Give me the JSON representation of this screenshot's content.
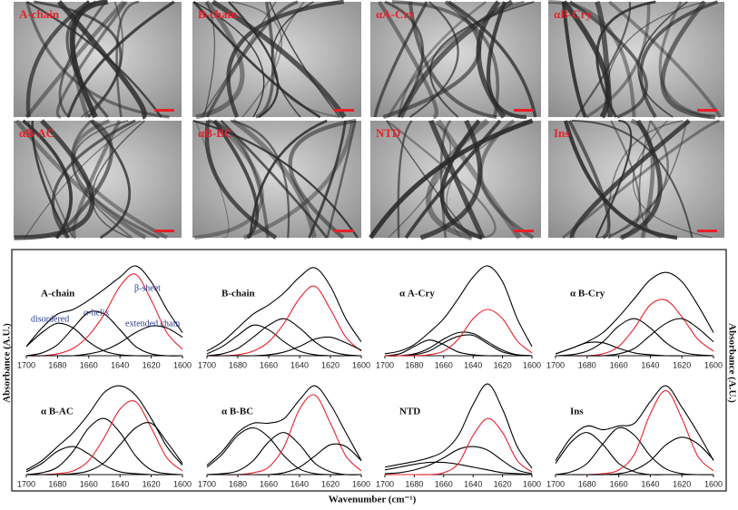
{
  "figure": {
    "xlabel": "Wavenumber (cm⁻¹)",
    "ylabel": "Absorbance (A.U.)"
  },
  "images": [
    {
      "label": "A-chain"
    },
    {
      "label": "B-chain"
    },
    {
      "label": "αA-Cry"
    },
    {
      "label": "αB-Cry"
    },
    {
      "label": "αB-AC"
    },
    {
      "label": "αB-BC"
    },
    {
      "label": "NTD"
    },
    {
      "label": "Ins"
    }
  ],
  "chart_data": [
    {
      "type": "line",
      "title": "A-chain",
      "annotations": [
        "disordered",
        "α-helix",
        "β-sheet",
        "extended chain"
      ],
      "x": [
        1700,
        1690,
        1680,
        1670,
        1660,
        1650,
        1640,
        1630,
        1620,
        1610,
        1600
      ],
      "xlim": [
        1700,
        1600
      ],
      "xticks": [
        1700,
        1680,
        1660,
        1640,
        1620,
        1600
      ],
      "ylim": [
        0,
        1
      ],
      "series": [
        {
          "color": "#000000",
          "values": [
            0.1,
            0.3,
            0.45,
            0.5,
            0.6,
            0.72,
            0.85,
            0.97,
            0.8,
            0.5,
            0.25
          ]
        },
        {
          "color": "#000000",
          "values": [
            0.1,
            0.25,
            0.35,
            0.3,
            0.15,
            0.05,
            0.01,
            0,
            0,
            0,
            0
          ]
        },
        {
          "color": "#000000",
          "values": [
            0,
            0.03,
            0.12,
            0.3,
            0.47,
            0.45,
            0.28,
            0.1,
            0.02,
            0,
            0
          ]
        },
        {
          "color": "#e8202a",
          "values": [
            0,
            0,
            0.02,
            0.08,
            0.22,
            0.45,
            0.75,
            0.88,
            0.6,
            0.25,
            0.07
          ]
        },
        {
          "color": "#000000",
          "values": [
            0,
            0,
            0,
            0,
            0.02,
            0.06,
            0.14,
            0.25,
            0.32,
            0.3,
            0.2
          ]
        }
      ]
    },
    {
      "type": "line",
      "title": "B-chain",
      "x": [
        1700,
        1690,
        1680,
        1670,
        1660,
        1650,
        1640,
        1630,
        1620,
        1610,
        1600
      ],
      "xlim": [
        1700,
        1600
      ],
      "xticks": [
        1700,
        1680,
        1660,
        1640,
        1620,
        1600
      ],
      "ylim": [
        0,
        1
      ],
      "series": [
        {
          "color": "#000000",
          "values": [
            0.05,
            0.15,
            0.3,
            0.45,
            0.55,
            0.68,
            0.85,
            0.95,
            0.75,
            0.4,
            0.15
          ]
        },
        {
          "color": "#000000",
          "values": [
            0.02,
            0.1,
            0.22,
            0.33,
            0.28,
            0.15,
            0.05,
            0.01,
            0,
            0,
            0
          ]
        },
        {
          "color": "#000000",
          "values": [
            0,
            0.02,
            0.08,
            0.2,
            0.33,
            0.4,
            0.3,
            0.15,
            0.05,
            0.01,
            0
          ]
        },
        {
          "color": "#e8202a",
          "values": [
            0,
            0,
            0.01,
            0.05,
            0.15,
            0.35,
            0.62,
            0.75,
            0.5,
            0.2,
            0.05
          ]
        },
        {
          "color": "#000000",
          "values": [
            0,
            0,
            0,
            0,
            0.01,
            0.04,
            0.1,
            0.18,
            0.2,
            0.14,
            0.06
          ]
        }
      ]
    },
    {
      "type": "line",
      "title": "α A-Cry",
      "x": [
        1700,
        1690,
        1680,
        1670,
        1660,
        1650,
        1640,
        1630,
        1620,
        1610,
        1600
      ],
      "xlim": [
        1700,
        1600
      ],
      "xticks": [
        1700,
        1680,
        1660,
        1640,
        1620,
        1600
      ],
      "ylim": [
        0,
        1
      ],
      "series": [
        {
          "color": "#000000",
          "values": [
            0.02,
            0.05,
            0.12,
            0.25,
            0.4,
            0.62,
            0.85,
            0.97,
            0.8,
            0.4,
            0.1
          ]
        },
        {
          "color": "#000000",
          "values": [
            0,
            0.02,
            0.1,
            0.17,
            0.12,
            0.04,
            0.01,
            0,
            0,
            0,
            0
          ]
        },
        {
          "color": "#000000",
          "values": [
            0,
            0,
            0.02,
            0.08,
            0.18,
            0.25,
            0.24,
            0.15,
            0.06,
            0.01,
            0
          ]
        },
        {
          "color": "#000000",
          "values": [
            0,
            0,
            0.01,
            0.05,
            0.14,
            0.21,
            0.22,
            0.13,
            0.04,
            0.01,
            0
          ]
        },
        {
          "color": "#e8202a",
          "values": [
            0,
            0,
            0,
            0.01,
            0.05,
            0.18,
            0.4,
            0.5,
            0.4,
            0.16,
            0.03
          ]
        }
      ]
    },
    {
      "type": "line",
      "title": "α B-Cry",
      "x": [
        1700,
        1690,
        1680,
        1670,
        1660,
        1650,
        1640,
        1630,
        1620,
        1610,
        1600
      ],
      "xlim": [
        1700,
        1600
      ],
      "xticks": [
        1700,
        1680,
        1660,
        1640,
        1620,
        1600
      ],
      "ylim": [
        0,
        1
      ],
      "series": [
        {
          "color": "#000000",
          "values": [
            0.02,
            0.08,
            0.15,
            0.25,
            0.42,
            0.62,
            0.82,
            0.9,
            0.8,
            0.55,
            0.25
          ]
        },
        {
          "color": "#000000",
          "values": [
            0.02,
            0.08,
            0.14,
            0.14,
            0.08,
            0.03,
            0.01,
            0,
            0,
            0,
            0
          ]
        },
        {
          "color": "#000000",
          "values": [
            0,
            0.01,
            0.05,
            0.15,
            0.32,
            0.4,
            0.3,
            0.14,
            0.04,
            0.01,
            0
          ]
        },
        {
          "color": "#e8202a",
          "values": [
            0,
            0,
            0,
            0.02,
            0.1,
            0.3,
            0.55,
            0.6,
            0.42,
            0.18,
            0.05
          ]
        },
        {
          "color": "#000000",
          "values": [
            0,
            0,
            0,
            0,
            0.02,
            0.08,
            0.22,
            0.35,
            0.4,
            0.3,
            0.15
          ]
        }
      ]
    },
    {
      "type": "line",
      "title": "α B-AC",
      "x": [
        1700,
        1690,
        1680,
        1670,
        1660,
        1650,
        1640,
        1630,
        1620,
        1610,
        1600
      ],
      "xlim": [
        1700,
        1600
      ],
      "xticks": [
        1700,
        1680,
        1660,
        1640,
        1620,
        1600
      ],
      "ylim": [
        0,
        1
      ],
      "series": [
        {
          "color": "#000000",
          "values": [
            0.05,
            0.15,
            0.3,
            0.45,
            0.65,
            0.88,
            0.95,
            0.85,
            0.6,
            0.3,
            0.1
          ]
        },
        {
          "color": "#000000",
          "values": [
            0.03,
            0.12,
            0.25,
            0.3,
            0.22,
            0.1,
            0.03,
            0.01,
            0,
            0,
            0
          ]
        },
        {
          "color": "#000000",
          "values": [
            0,
            0.02,
            0.08,
            0.25,
            0.5,
            0.6,
            0.45,
            0.2,
            0.05,
            0.01,
            0
          ]
        },
        {
          "color": "#e8202a",
          "values": [
            0,
            0,
            0.01,
            0.04,
            0.15,
            0.4,
            0.7,
            0.78,
            0.5,
            0.18,
            0.04
          ]
        },
        {
          "color": "#000000",
          "values": [
            0,
            0,
            0,
            0.01,
            0.04,
            0.13,
            0.32,
            0.5,
            0.55,
            0.35,
            0.12
          ]
        }
      ]
    },
    {
      "type": "line",
      "title": "α B-BC",
      "x": [
        1700,
        1690,
        1680,
        1670,
        1660,
        1650,
        1640,
        1630,
        1620,
        1610,
        1600
      ],
      "xlim": [
        1700,
        1600
      ],
      "xticks": [
        1700,
        1680,
        1660,
        1640,
        1620,
        1600
      ],
      "ylim": [
        0,
        1
      ],
      "series": [
        {
          "color": "#000000",
          "values": [
            0.1,
            0.25,
            0.45,
            0.55,
            0.55,
            0.6,
            0.8,
            0.95,
            0.75,
            0.45,
            0.15
          ]
        },
        {
          "color": "#000000",
          "values": [
            0.08,
            0.22,
            0.42,
            0.5,
            0.4,
            0.2,
            0.06,
            0.01,
            0,
            0,
            0
          ]
        },
        {
          "color": "#000000",
          "values": [
            0,
            0.01,
            0.04,
            0.15,
            0.35,
            0.45,
            0.32,
            0.12,
            0.03,
            0,
            0
          ]
        },
        {
          "color": "#e8202a",
          "values": [
            0,
            0,
            0,
            0.02,
            0.08,
            0.3,
            0.7,
            0.85,
            0.55,
            0.2,
            0.04
          ]
        },
        {
          "color": "#000000",
          "values": [
            0,
            0,
            0,
            0,
            0,
            0.02,
            0.08,
            0.2,
            0.32,
            0.3,
            0.15
          ]
        }
      ]
    },
    {
      "type": "line",
      "title": "NTD",
      "x": [
        1700,
        1690,
        1680,
        1670,
        1660,
        1650,
        1640,
        1630,
        1620,
        1610,
        1600
      ],
      "xlim": [
        1700,
        1600
      ],
      "xticks": [
        1700,
        1680,
        1660,
        1640,
        1620,
        1600
      ],
      "ylim": [
        0,
        1
      ],
      "series": [
        {
          "color": "#000000",
          "values": [
            0.08,
            0.11,
            0.14,
            0.18,
            0.25,
            0.42,
            0.75,
            0.97,
            0.7,
            0.3,
            0.07
          ]
        },
        {
          "color": "#000000",
          "values": [
            0.05,
            0.08,
            0.11,
            0.13,
            0.13,
            0.11,
            0.08,
            0.05,
            0.02,
            0.01,
            0
          ]
        },
        {
          "color": "#000000",
          "values": [
            0.01,
            0.02,
            0.05,
            0.1,
            0.18,
            0.27,
            0.3,
            0.26,
            0.15,
            0.05,
            0.01
          ]
        },
        {
          "color": "#e8202a",
          "values": [
            0,
            0,
            0,
            0,
            0.02,
            0.12,
            0.42,
            0.6,
            0.45,
            0.15,
            0.03
          ]
        }
      ]
    },
    {
      "type": "line",
      "title": "Ins",
      "x": [
        1700,
        1690,
        1680,
        1670,
        1660,
        1650,
        1640,
        1630,
        1620,
        1610,
        1600
      ],
      "xlim": [
        1700,
        1600
      ],
      "xticks": [
        1700,
        1680,
        1660,
        1640,
        1620,
        1600
      ],
      "ylim": [
        0,
        1
      ],
      "series": [
        {
          "color": "#000000",
          "values": [
            0.15,
            0.4,
            0.52,
            0.48,
            0.52,
            0.55,
            0.78,
            0.95,
            0.72,
            0.45,
            0.15
          ]
        },
        {
          "color": "#000000",
          "values": [
            0.12,
            0.35,
            0.45,
            0.32,
            0.12,
            0.03,
            0,
            0,
            0,
            0,
            0
          ]
        },
        {
          "color": "#000000",
          "values": [
            0,
            0.03,
            0.12,
            0.33,
            0.5,
            0.42,
            0.2,
            0.06,
            0.01,
            0,
            0
          ]
        },
        {
          "color": "#e8202a",
          "values": [
            0,
            0,
            0,
            0.01,
            0.05,
            0.22,
            0.65,
            0.9,
            0.6,
            0.2,
            0.04
          ]
        },
        {
          "color": "#000000",
          "values": [
            0,
            0,
            0,
            0,
            0.01,
            0.05,
            0.15,
            0.32,
            0.4,
            0.33,
            0.16
          ]
        }
      ]
    }
  ]
}
